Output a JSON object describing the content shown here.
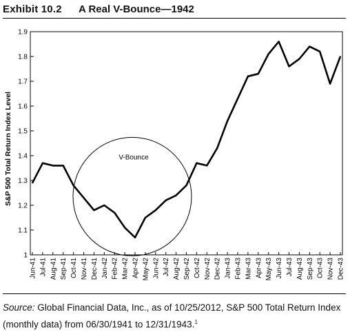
{
  "header": {
    "exhibit_number": "Exhibit 10.2",
    "title": "A Real V-Bounce—1942"
  },
  "source": {
    "label": "Source:",
    "text": "Global Financial Data, Inc., as of 10/25/2012, S&P 500 Total Return Index (monthly data) from 06/30/1941 to 12/31/1943.",
    "footnote": "1"
  },
  "chart_data": {
    "type": "line",
    "ylabel": "S&P 500 Total Return Index Level",
    "ylim": [
      1.0,
      1.9
    ],
    "yticks": [
      "1",
      "1.1",
      "1.2",
      "1.3",
      "1.4",
      "1.5",
      "1.6",
      "1.7",
      "1.8",
      "1.9"
    ],
    "categories": [
      "Jun-41",
      "Jul-41",
      "Aug-41",
      "Sep-41",
      "Oct-41",
      "Nov-41",
      "Dec-41",
      "Jan-42",
      "Feb-42",
      "Mar-42",
      "Apr-42",
      "May-42",
      "Jun-42",
      "Jul-42",
      "Aug-42",
      "Sep-42",
      "Oct-42",
      "Nov-42",
      "Dec-42",
      "Jan-43",
      "Feb-43",
      "Mar-43",
      "Apr-43",
      "May-43",
      "Jun-43",
      "Jul-43",
      "Aug-43",
      "Sep-43",
      "Oct-43",
      "Nov-43",
      "Dec-43"
    ],
    "series": [
      {
        "values": [
          1.29,
          1.37,
          1.36,
          1.36,
          1.28,
          1.23,
          1.18,
          1.2,
          1.17,
          1.11,
          1.07,
          1.15,
          1.18,
          1.22,
          1.24,
          1.28,
          1.37,
          1.36,
          1.43,
          1.54,
          1.63,
          1.72,
          1.73,
          1.81,
          1.86,
          1.76,
          1.79,
          1.84,
          1.82,
          1.69,
          1.8
        ],
        "color": "#000000"
      }
    ],
    "annotation": {
      "text": "V-Bounce",
      "center_category": "Apr-42",
      "center_value": 1.235,
      "shape": "circle"
    },
    "grid": false
  }
}
